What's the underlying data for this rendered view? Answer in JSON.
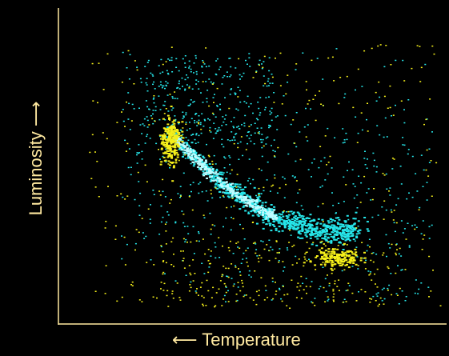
{
  "chart_data": {
    "type": "scatter",
    "title": "",
    "xlabel": "⟵ Temperature",
    "ylabel": "Luminosity ⟶",
    "x_direction": "temperature increases to the left",
    "ticks": "none",
    "grid": false,
    "legend": "none",
    "colors": {
      "background": "#000000",
      "axis": "#ffe9a0",
      "series_a": "#26e6ea",
      "series_b": "#f5ef1a"
    },
    "series": [
      {
        "color": "#26e6ea",
        "trend": "main-sequence band from upper-left curving to lower-right, with scattered branch toward upper-left"
      },
      {
        "color": "#f5ef1a",
        "trend": "dense clump near upper-left bend and near lower-right end of the band, sparse elsewhere"
      }
    ]
  }
}
